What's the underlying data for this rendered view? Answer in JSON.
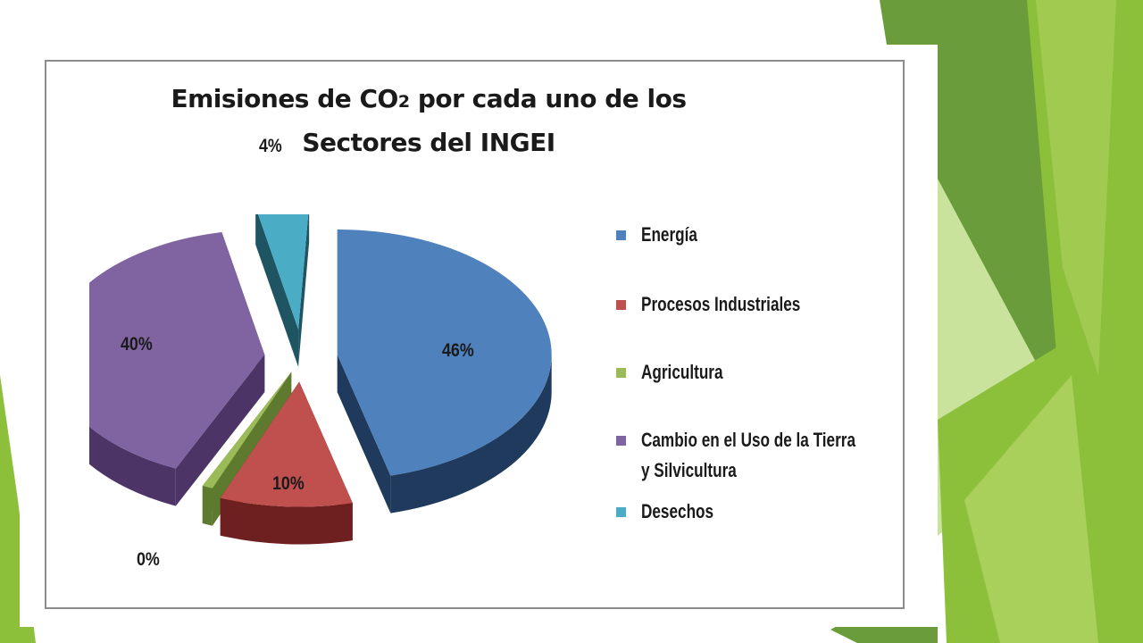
{
  "theme": {
    "greens": [
      "#4e8a2a",
      "#6b9c3c",
      "#8cbf3a",
      "#a8d05a",
      "#c9e39c"
    ]
  },
  "chart_data": {
    "type": "pie",
    "title_parts": [
      "Emisiones de CO",
      "2",
      " por cada uno de los"
    ],
    "title_line2": "Sectores del INGEI",
    "legend_position": "right",
    "slices": [
      {
        "name": "Energía",
        "value": 46,
        "label": "46%",
        "color": "#4f81bd",
        "side": "#1f3a5c"
      },
      {
        "name": "Procesos Industriales",
        "value": 10,
        "label": "10%",
        "color": "#c0504d",
        "side": "#6e1f1f"
      },
      {
        "name": "Agricultura",
        "value": 0,
        "label": "0%",
        "color": "#9bbb59",
        "side": "#5e7a2e"
      },
      {
        "name": "Cambio en el Uso de la Tierra y Silvicultura",
        "value": 40,
        "label": "40%",
        "color": "#8064a2",
        "side": "#4c3566"
      },
      {
        "name": "Desechos",
        "value": 4,
        "label": "4%",
        "color": "#4bacc6",
        "side": "#1f5563"
      }
    ],
    "legend_lines": [
      [
        "Energía"
      ],
      [
        "Procesos Industriales"
      ],
      [
        "Agricultura"
      ],
      [
        "Cambio en el Uso de la Tierra",
        "y Silvicultura"
      ],
      [
        "Desechos"
      ]
    ]
  }
}
